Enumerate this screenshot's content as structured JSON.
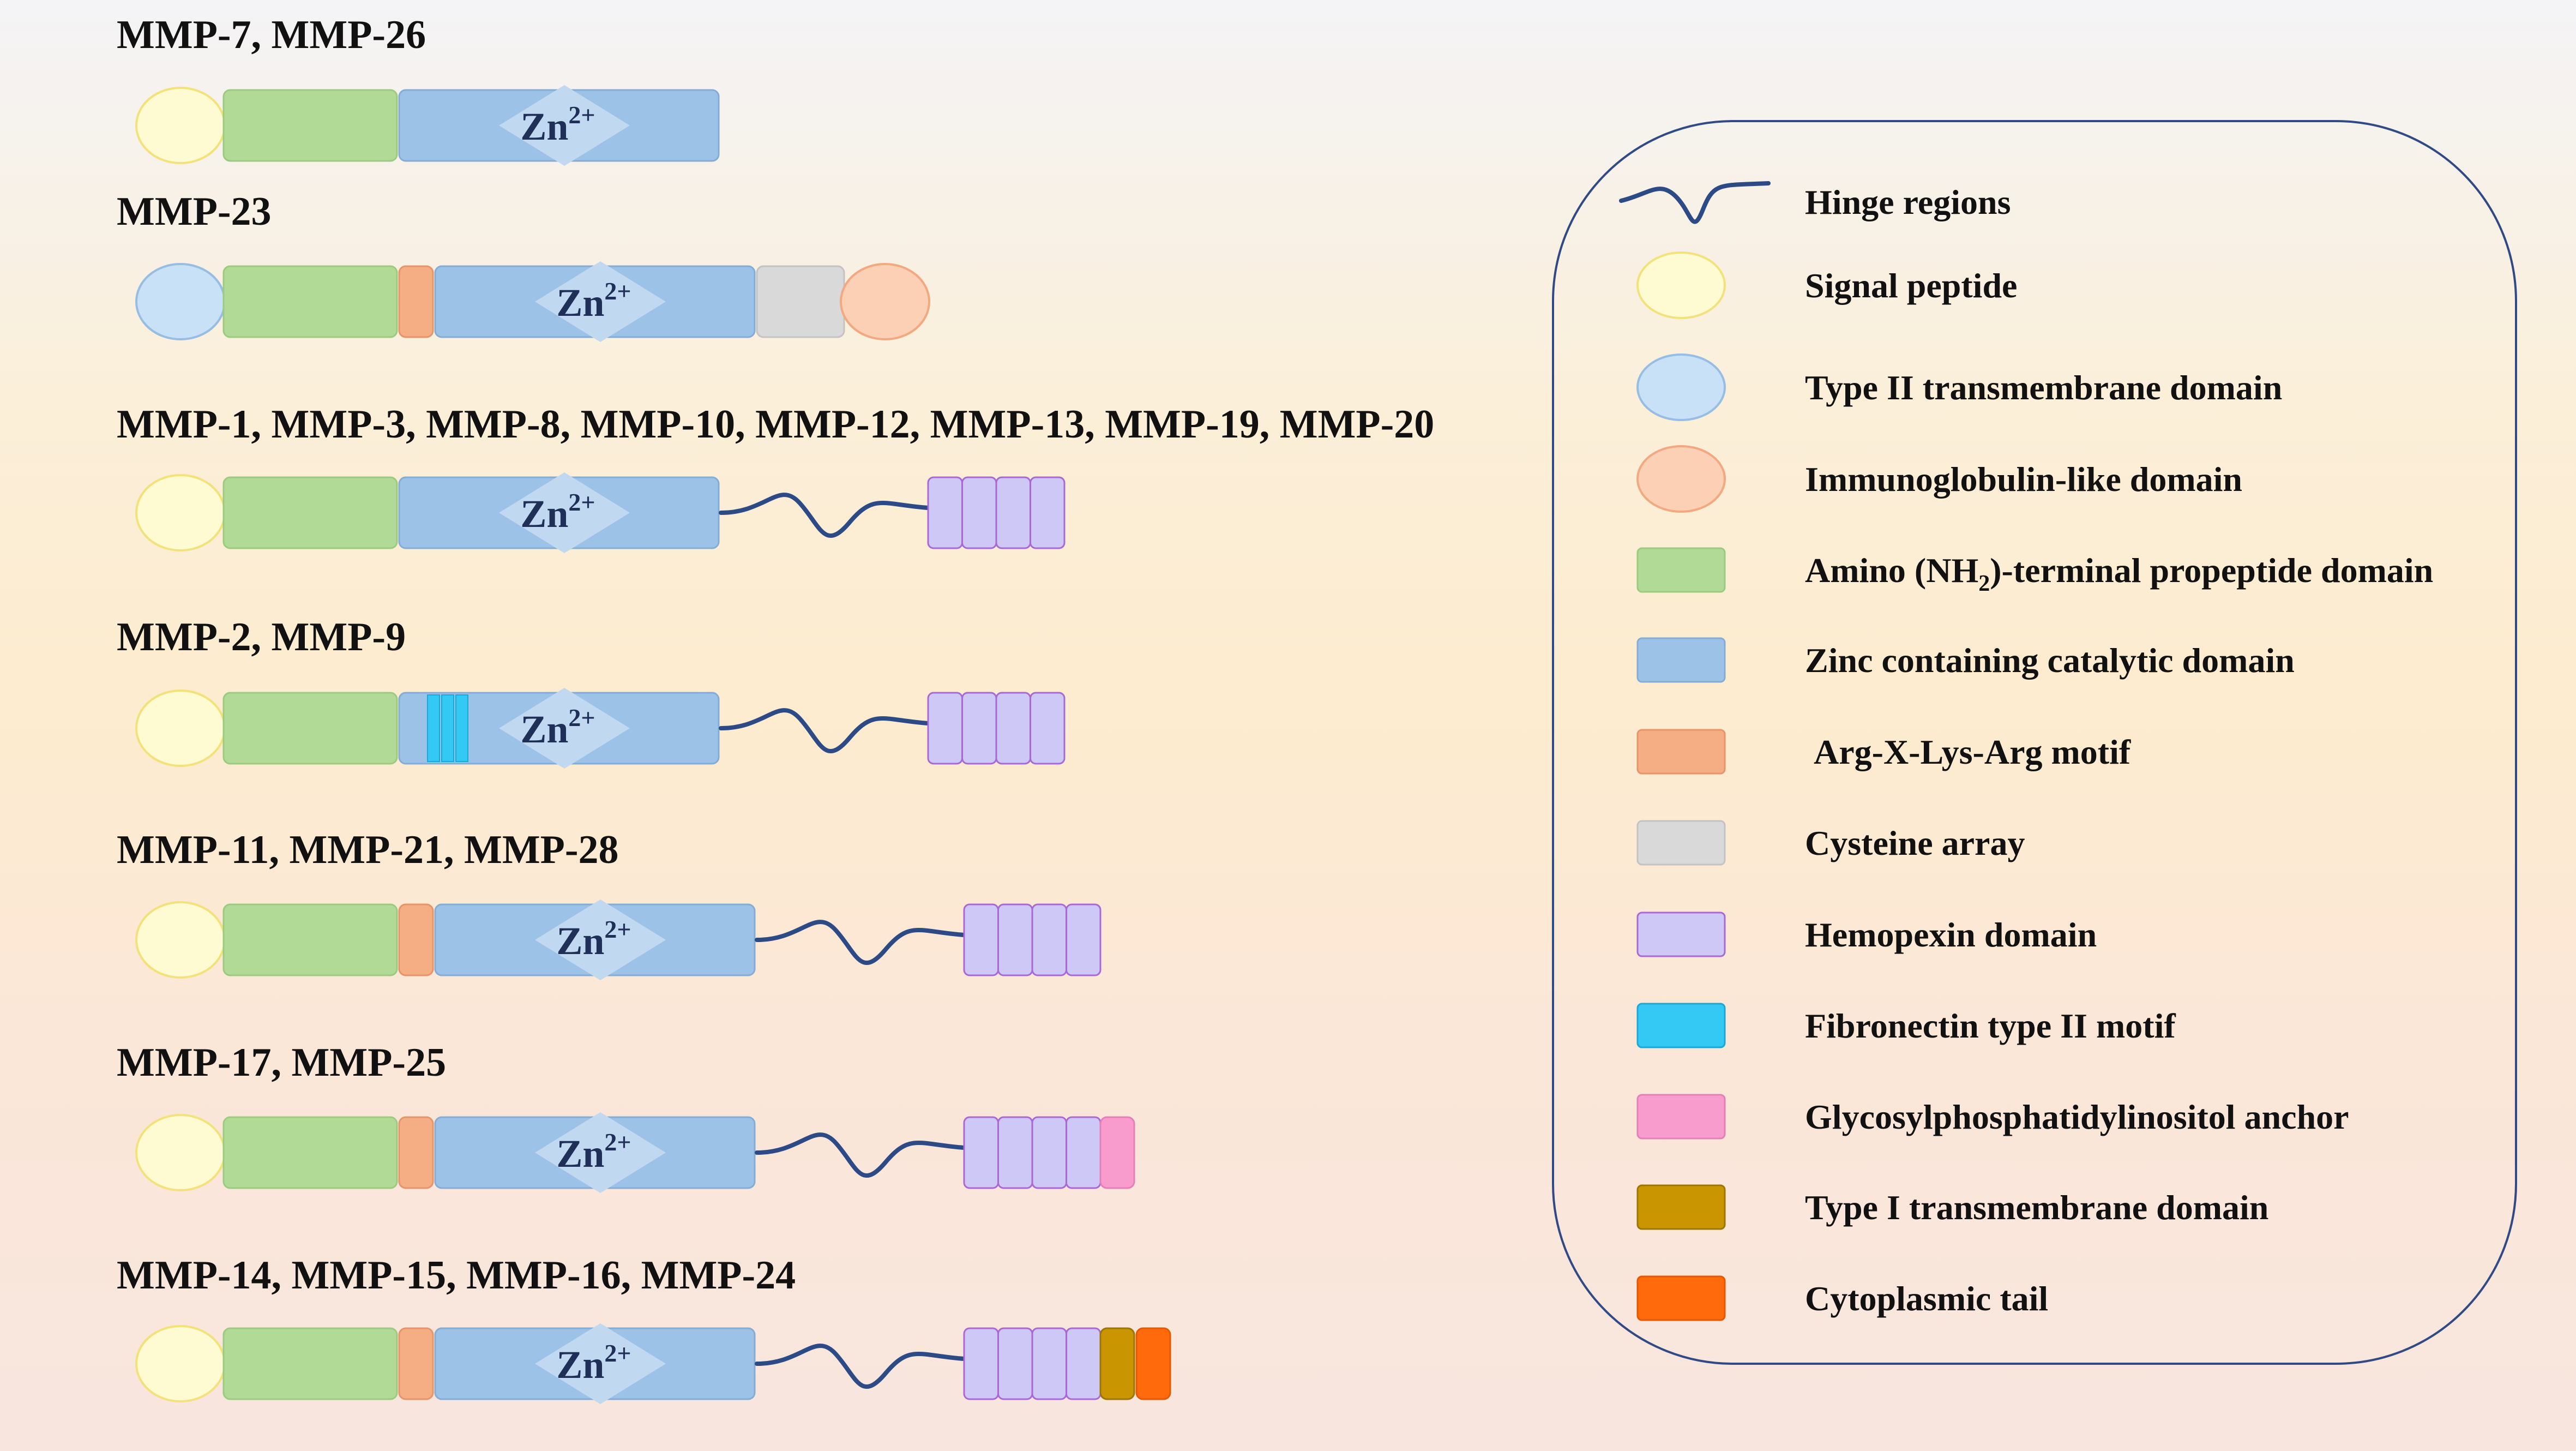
{
  "rows": [
    {
      "label": "MMP-7, MMP-26",
      "domains": [
        "signal",
        "propeptide",
        "catalytic"
      ]
    },
    {
      "label": "MMP-23",
      "domains": [
        "typeII",
        "propeptide",
        "furin",
        "catalytic",
        "cysteine",
        "ig"
      ]
    },
    {
      "label": "MMP-1, MMP-3, MMP-8, MMP-10, MMP-12, MMP-13, MMP-19, MMP-20",
      "domains": [
        "signal",
        "propeptide",
        "catalytic",
        "hinge",
        "hemopexin"
      ]
    },
    {
      "label": "MMP-2, MMP-9",
      "domains": [
        "signal",
        "propeptide",
        "catalytic",
        "fibronectin",
        "hinge",
        "hemopexin"
      ]
    },
    {
      "label": "MMP-11, MMP-21, MMP-28",
      "domains": [
        "signal",
        "propeptide",
        "furin",
        "catalytic",
        "hinge",
        "hemopexin"
      ]
    },
    {
      "label": "MMP-17, MMP-25",
      "domains": [
        "signal",
        "propeptide",
        "furin",
        "catalytic",
        "hinge",
        "hemopexin",
        "gpi"
      ]
    },
    {
      "label": "MMP-14, MMP-15, MMP-16, MMP-24",
      "domains": [
        "signal",
        "propeptide",
        "furin",
        "catalytic",
        "hinge",
        "hemopexin",
        "typeI",
        "cyto"
      ]
    }
  ],
  "zinc_label": {
    "base": "Zn",
    "superscript": "2+"
  },
  "legend": [
    {
      "key": "hinge",
      "shape": "wave",
      "label": "Hinge regions"
    },
    {
      "key": "signal",
      "shape": "ellipse",
      "label": "Signal peptide"
    },
    {
      "key": "typeII",
      "shape": "ellipse",
      "label": "Type II transmembrane domain"
    },
    {
      "key": "ig",
      "shape": "ellipse",
      "label": "Immunoglobulin-like domain"
    },
    {
      "key": "propeptide",
      "shape": "rect",
      "label_pre": "Amino (NH",
      "label_sub": "2",
      "label_post": ")-terminal propeptide domain"
    },
    {
      "key": "catalytic",
      "shape": "rect",
      "label": "Zinc containing catalytic domain"
    },
    {
      "key": "furin",
      "shape": "rect",
      "label": "Arg-X-Lys-Arg motif"
    },
    {
      "key": "cysteine",
      "shape": "rect",
      "label": "Cysteine array"
    },
    {
      "key": "hemopexin",
      "shape": "rect",
      "label": "Hemopexin domain"
    },
    {
      "key": "fibronectin",
      "shape": "rect",
      "label": "Fibronectin type II motif"
    },
    {
      "key": "gpi",
      "shape": "rect",
      "label": "Glycosylphosphatidylinositol anchor"
    },
    {
      "key": "typeI",
      "shape": "rect",
      "label": "Type I transmembrane domain"
    },
    {
      "key": "cyto",
      "shape": "rect",
      "label": "Cytoplasmic tail"
    }
  ],
  "colors": {
    "signal": {
      "fill": "#fefbd2",
      "stroke": "#f3e27a"
    },
    "typeII": {
      "fill": "#c9e1f7",
      "stroke": "#96bde4"
    },
    "ig": {
      "fill": "#fcd0b4",
      "stroke": "#f3a87f"
    },
    "propeptide": {
      "fill": "#b0da96",
      "stroke": "#9ccb80"
    },
    "catalytic": {
      "fill": "#9dc2e7",
      "stroke": "#83add6"
    },
    "furin": {
      "fill": "#f5ad84",
      "stroke": "#e8946a"
    },
    "cysteine": {
      "fill": "#d9d9d9",
      "stroke": "#c3c3c3"
    },
    "hemopexin": {
      "fill": "#cdc8f6",
      "stroke": "#aa68d6"
    },
    "fibronectin": {
      "fill": "#34c8f4",
      "stroke": "#1aa9d6"
    },
    "gpi": {
      "fill": "#f79ccd",
      "stroke": "#e67fb8"
    },
    "typeI": {
      "fill": "#c99500",
      "stroke": "#9e7500"
    },
    "cyto": {
      "fill": "#ff6a0d",
      "stroke": "#e55800"
    },
    "hinge": {
      "stroke": "#2c4a86"
    },
    "zinc_diamond": {
      "fill": "#c0d8f0"
    },
    "legend_border": {
      "stroke": "#2f4a84"
    }
  }
}
